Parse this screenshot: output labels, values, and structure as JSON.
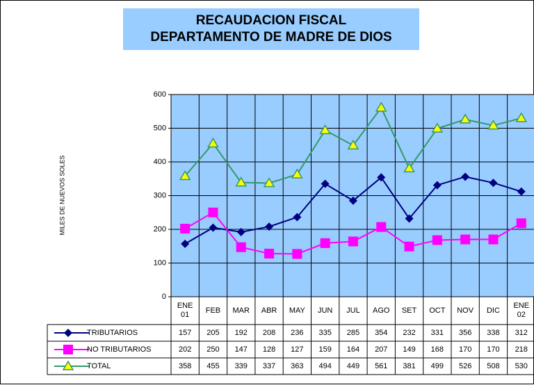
{
  "chart_data": {
    "type": "line",
    "title": [
      "RECAUDACION FISCAL",
      "DEPARTAMENTO DE MADRE DE DIOS"
    ],
    "y_label": "MILES DE NUEVOS SOLES",
    "categories": [
      "ENE 01",
      "FEB",
      "MAR",
      "ABR",
      "MAY",
      "JUN",
      "JUL",
      "AGO",
      "SET",
      "OCT",
      "NOV",
      "DIC",
      "ENE 02"
    ],
    "series": [
      {
        "name": "TRIBUTARIOS",
        "color": "#000080",
        "marker": "diamond",
        "values": [
          157,
          205,
          192,
          208,
          236,
          335,
          285,
          354,
          232,
          331,
          356,
          338,
          312
        ]
      },
      {
        "name": "NO TRIBUTARIOS",
        "color": "#ff00ff",
        "marker": "square",
        "values": [
          202,
          250,
          147,
          128,
          127,
          159,
          164,
          207,
          149,
          168,
          170,
          170,
          218
        ]
      },
      {
        "name": "TOTAL",
        "color": "#339966",
        "marker": "triangle",
        "marker_fill": "#ffff00",
        "values": [
          358,
          455,
          339,
          337,
          363,
          494,
          449,
          561,
          381,
          499,
          526,
          508,
          530
        ]
      }
    ],
    "ylim": [
      0,
      600
    ],
    "yticks": [
      0,
      100,
      200,
      300,
      400,
      500,
      600
    ],
    "grid": true,
    "plot_background": "#99ccff"
  }
}
